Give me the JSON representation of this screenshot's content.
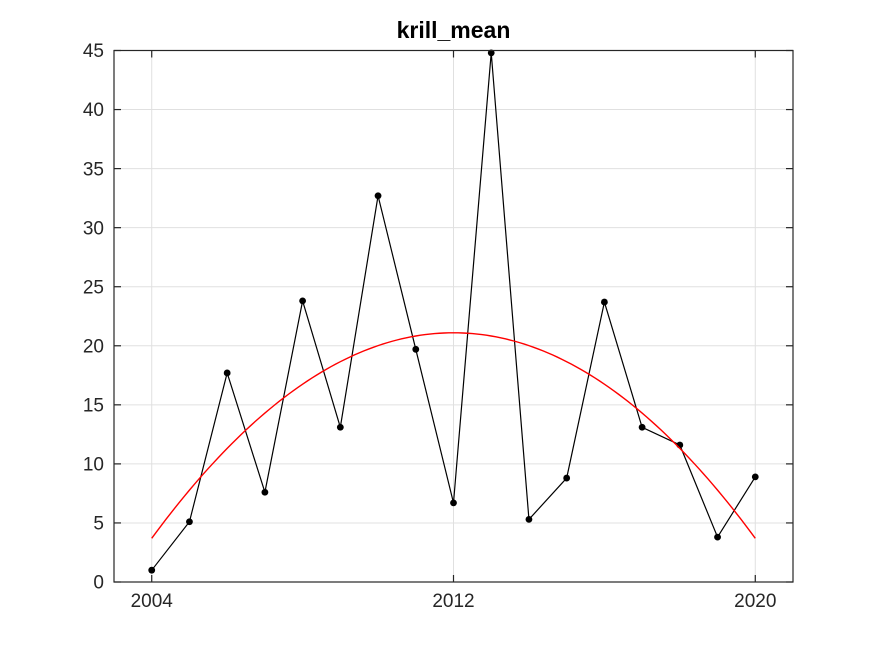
{
  "chart_data": {
    "type": "line",
    "title": "krill_mean",
    "x": [
      2004,
      2005,
      2006,
      2007,
      2008,
      2009,
      2010,
      2011,
      2012,
      2013,
      2014,
      2015,
      2016,
      2017,
      2018,
      2019,
      2020
    ],
    "series": [
      {
        "name": "krill_mean",
        "values": [
          1.0,
          5.1,
          17.7,
          7.6,
          23.8,
          13.1,
          32.7,
          19.7,
          6.7,
          44.8,
          5.3,
          8.8,
          23.7,
          13.1,
          11.6,
          3.8,
          8.9
        ],
        "color": "#000000",
        "marker": "filled-circle",
        "marker_radius": 3.4,
        "line_width": 1.2
      },
      {
        "name": "quadratic-fit",
        "shape": "parabola",
        "peak_x": 2012,
        "peak_y": 21.1,
        "start_x": 2004,
        "start_y": 3.7,
        "end_x": 2020,
        "end_y": 3.7,
        "color": "#ff0000",
        "line_width": 1.4
      }
    ],
    "xlabel": "",
    "ylabel": "",
    "xlim": [
      2003,
      2021
    ],
    "ylim": [
      0,
      45
    ],
    "xticks": [
      2004,
      2012,
      2020
    ],
    "xtick_labels": [
      "2004",
      "2012",
      "2020"
    ],
    "yticks": [
      0,
      5,
      10,
      15,
      20,
      25,
      30,
      35,
      40,
      45
    ],
    "ytick_labels": [
      "0",
      "5",
      "10",
      "15",
      "20",
      "25",
      "30",
      "35",
      "40",
      "45"
    ],
    "grid": true,
    "legend": null,
    "colors": {
      "axis": "#262626",
      "grid": "#e0e0e0",
      "background": "#ffffff",
      "data_line": "#000000",
      "fit_line": "#ff0000"
    }
  }
}
